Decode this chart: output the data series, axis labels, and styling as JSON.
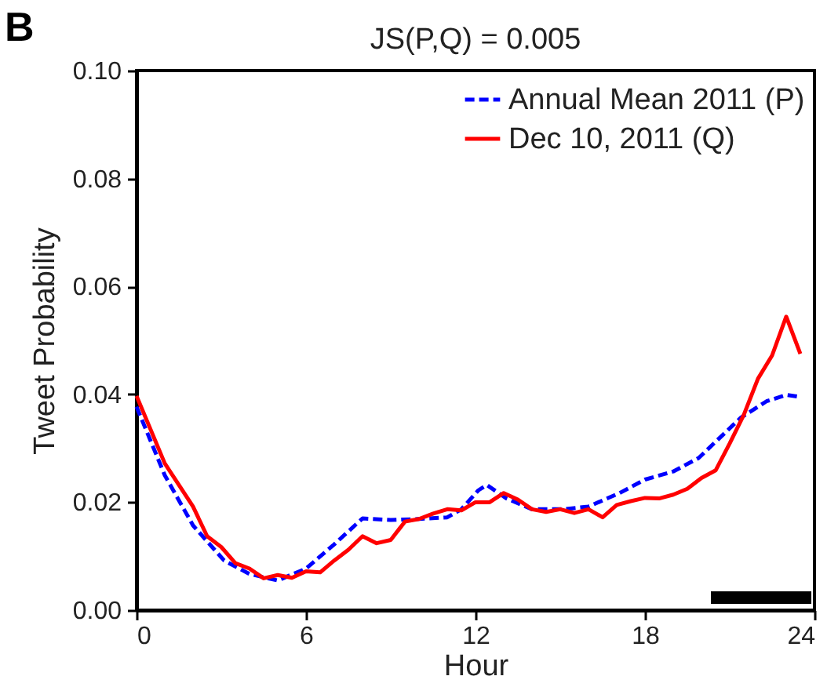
{
  "chart_data": {
    "type": "line",
    "title": "JS(P,Q) = 0.005",
    "xlabel": "Hour",
    "ylabel": "Tweet Probability",
    "annotations": [
      "B"
    ],
    "xlim": [
      0,
      24
    ],
    "xticks": [
      0,
      6,
      12,
      18,
      24
    ],
    "ylim": [
      0,
      0.1
    ],
    "yticks": [
      {
        "value": 0,
        "label": "0.00"
      },
      {
        "value": 0.02,
        "label": "0.02"
      },
      {
        "value": 0.04,
        "label": "0.04"
      },
      {
        "value": 0.06,
        "label": "0.06"
      },
      {
        "value": 0.08,
        "label": "0.08"
      },
      {
        "value": 0.1,
        "label": "0.10"
      }
    ],
    "grid": false,
    "legend": "top right",
    "marker": "none",
    "series": [
      {
        "name": "Annual Mean 2011 (P)",
        "color": "#0000ff",
        "line_style": "dashed",
        "x": [
          0,
          1,
          2,
          3.1,
          4,
          5,
          6,
          7,
          8,
          9,
          10,
          11,
          11.5,
          12.1,
          12.4,
          13.1,
          14,
          15.1,
          16,
          17.1,
          18,
          19,
          19.9,
          20.6,
          21.4,
          22.3,
          23,
          23.5
        ],
        "values": [
          0.0377,
          0.025,
          0.0157,
          0.0092,
          0.0067,
          0.0055,
          0.0077,
          0.0122,
          0.017,
          0.0167,
          0.0169,
          0.0172,
          0.0187,
          0.0222,
          0.0232,
          0.0207,
          0.0187,
          0.0187,
          0.0192,
          0.0217,
          0.0242,
          0.0257,
          0.0282,
          0.0317,
          0.0357,
          0.0387,
          0.0399,
          0.0395
        ]
      },
      {
        "name": "Dec 10, 2011 (Q)",
        "color": "#ff0000",
        "line_style": "solid",
        "x": [
          0,
          1,
          2,
          2.5,
          3,
          3.5,
          4,
          4.5,
          5,
          5.5,
          6,
          6.5,
          7,
          7.5,
          8,
          8.5,
          9,
          9.5,
          10,
          10.5,
          11,
          11.5,
          12,
          12.5,
          13,
          13.5,
          14,
          14.5,
          15,
          15.5,
          16,
          16.5,
          17,
          17.5,
          18,
          18.5,
          19,
          19.5,
          20,
          20.5,
          21,
          21.5,
          22,
          22.5,
          23,
          23.5
        ],
        "values": [
          0.0397,
          0.0272,
          0.0192,
          0.0137,
          0.0117,
          0.0087,
          0.0077,
          0.0059,
          0.0065,
          0.006,
          0.0072,
          0.007,
          0.0092,
          0.0112,
          0.0137,
          0.0124,
          0.013,
          0.0164,
          0.0169,
          0.0179,
          0.0187,
          0.0185,
          0.02,
          0.02,
          0.0217,
          0.0205,
          0.0187,
          0.0182,
          0.0187,
          0.018,
          0.0187,
          0.0172,
          0.0195,
          0.0202,
          0.0208,
          0.0207,
          0.0214,
          0.0225,
          0.0245,
          0.0259,
          0.0309,
          0.0362,
          0.0429,
          0.0472,
          0.0544,
          0.0475
        ]
      }
    ]
  }
}
